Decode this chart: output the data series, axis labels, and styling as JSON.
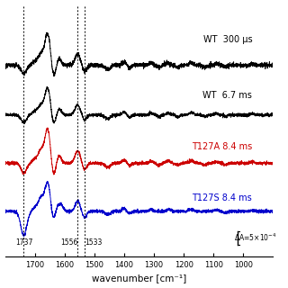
{
  "xlabel": "wavenumber [cm⁻¹]",
  "xmin": 900,
  "xmax": 1800,
  "xticks": [
    1700,
    1600,
    1500,
    1400,
    1300,
    1200,
    1100,
    1000
  ],
  "vlines": [
    1737,
    1556,
    1533
  ],
  "vline_labels": [
    "1737",
    "1556",
    "1533"
  ],
  "spectrum_labels": [
    {
      "text": "WT  300 μs",
      "color": "black"
    },
    {
      "text": "WT  6.7 ms",
      "color": "black"
    },
    {
      "text": "T127A 8.4 ms",
      "color": "#cc0000"
    },
    {
      "text": "T127S 8.4 ms",
      "color": "#0000cc"
    }
  ],
  "offsets": [
    0.55,
    0.22,
    -0.1,
    -0.42
  ],
  "scale_bar_label": "ΔA=5×10⁻⁴",
  "background_color": "#ffffff",
  "noise_seed": 17
}
